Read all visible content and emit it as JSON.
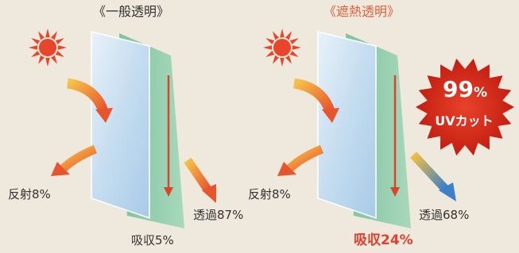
{
  "panels": [
    {
      "title": "《一般透明》",
      "reflect": "反射8%",
      "transmit": "透過87%",
      "absorb": "吸収5%"
    },
    {
      "title": "《遮熱透明》",
      "reflect": "反射8%",
      "transmit": "透過68%",
      "absorb": "吸収24%"
    }
  ],
  "badge": {
    "number": "99",
    "unit": "%",
    "label": "UVカット"
  }
}
